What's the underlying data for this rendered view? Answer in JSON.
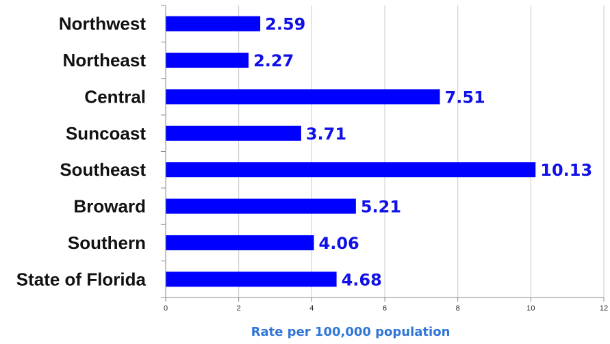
{
  "chart_data": {
    "type": "bar",
    "orientation": "horizontal",
    "categories": [
      "Northwest",
      "Northeast",
      "Central",
      "Suncoast",
      "Southeast",
      "Broward",
      "Southern",
      "State of Florida"
    ],
    "values": [
      2.59,
      2.27,
      7.51,
      3.71,
      10.13,
      5.21,
      4.06,
      4.68
    ],
    "value_labels": [
      "2.59",
      "2.27",
      "7.51",
      "3.71",
      "10.13",
      "5.21",
      "4.06",
      "4.68"
    ],
    "xlabel": "Rate per 100,000 population",
    "xlim": [
      0,
      12
    ],
    "xticks": [
      0,
      2,
      4,
      6,
      8,
      10,
      12
    ],
    "xtick_labels": [
      "0",
      "2",
      "4",
      "6",
      "8",
      "10",
      "12"
    ],
    "grid": "vertical",
    "legend": "none",
    "colors": {
      "bar": "#0000ff",
      "value_label": "#1010e8",
      "axis_title": "#2e75d6",
      "gridline": "#c8c8c8",
      "axis": "#888888"
    }
  }
}
